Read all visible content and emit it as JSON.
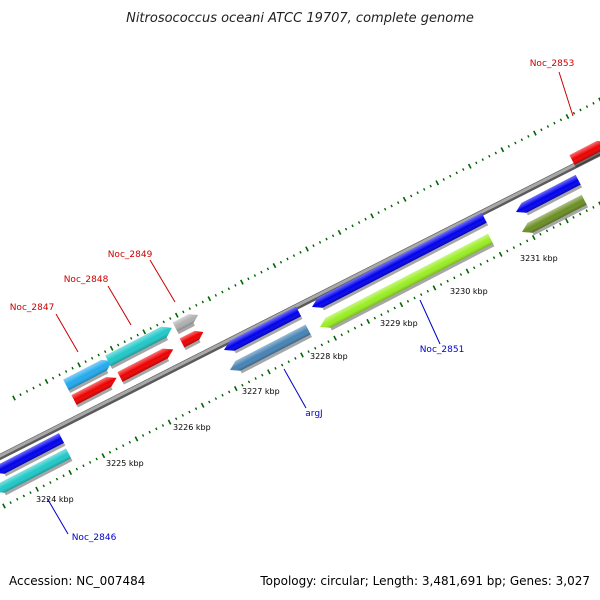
{
  "title": "Nitrosococcus oceani ATCC 19707, complete genome",
  "footer": {
    "accession": "Accession: NC_007484",
    "summary": "Topology: circular; Length: 3,481,691 bp; Genes: 3,027"
  },
  "ticks": [
    "3224 kbp",
    "3225 kbp",
    "3226 kbp",
    "3227 kbp",
    "3228 kbp",
    "3229 kbp",
    "3230 kbp",
    "3231 kbp"
  ],
  "labels": {
    "noc2853": "Noc_2853",
    "noc2849": "Noc_2849",
    "noc2848": "Noc_2848",
    "noc2847": "Noc_2847",
    "noc2851": "Noc_2851",
    "argJ": "argJ",
    "noc2846": "Noc_2846"
  },
  "colors": {
    "forward_label": "#cc0000",
    "reverse_label": "#0000cc",
    "backbone": "#808080",
    "tick": "#006400",
    "blue": "#0000ee",
    "cyan": "#20c8c8",
    "red": "#ee0000",
    "lime": "#99ee22",
    "steel": "#4682b4",
    "olive": "#6b8e23",
    "gray": "#b0b0b0",
    "navy": "#4b3a8c"
  }
}
